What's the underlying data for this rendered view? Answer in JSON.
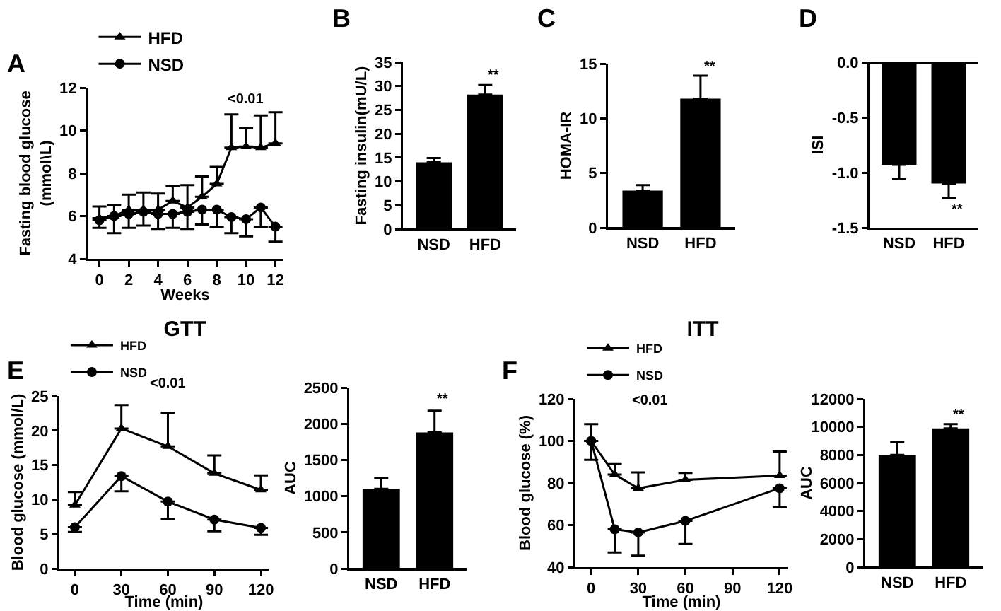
{
  "chart_data": [
    {
      "type": "line",
      "annotations": [
        "A",
        "<0.01"
      ],
      "xlabel": "Weeks",
      "ylabel": "Fasting blood glucose\n(mmol\\L)",
      "x": [
        0,
        1,
        2,
        3,
        4,
        5,
        6,
        7,
        8,
        9,
        10,
        11,
        12
      ],
      "xlim": [
        -0.8,
        12.5
      ],
      "xticks": [
        0,
        2,
        4,
        6,
        8,
        10,
        12
      ],
      "ylim": [
        4,
        12
      ],
      "yticks": [
        4,
        6,
        8,
        10,
        12
      ],
      "legend": "top left",
      "grid": false,
      "series": [
        {
          "name": "HFD",
          "color": "#000000",
          "marker": "triangle",
          "values": [
            5.9,
            6.0,
            6.3,
            6.3,
            6.3,
            6.7,
            6.4,
            6.9,
            7.5,
            9.2,
            9.25,
            9.2,
            9.4
          ],
          "errors": [
            [
              5.9,
              6.45
            ],
            [
              6.0,
              6.5
            ],
            [
              6.3,
              7.0
            ],
            [
              6.3,
              7.1
            ],
            [
              6.3,
              7.05
            ],
            [
              6.7,
              7.4
            ],
            [
              6.4,
              7.45
            ],
            [
              6.9,
              7.85
            ],
            [
              7.5,
              8.3
            ],
            [
              9.2,
              10.75
            ],
            [
              9.25,
              10.1
            ],
            [
              9.2,
              10.7
            ],
            [
              9.4,
              10.85
            ]
          ]
        },
        {
          "name": "NSD",
          "color": "#000000",
          "marker": "circle",
          "values": [
            5.8,
            6.0,
            6.1,
            6.2,
            6.1,
            6.1,
            6.2,
            6.3,
            6.3,
            5.95,
            5.85,
            6.4,
            5.5
          ],
          "errors": [
            [
              5.45,
              5.8
            ],
            [
              5.2,
              6.0
            ],
            [
              5.45,
              6.1
            ],
            [
              5.55,
              6.2
            ],
            [
              5.4,
              6.1
            ],
            [
              5.45,
              6.1
            ],
            [
              5.4,
              6.2
            ],
            [
              5.6,
              6.3
            ],
            [
              5.5,
              6.3
            ],
            [
              5.2,
              5.95
            ],
            [
              5.05,
              5.85
            ],
            [
              5.5,
              6.4
            ],
            [
              4.8,
              5.5
            ]
          ]
        }
      ]
    },
    {
      "type": "bar",
      "annotations": [
        "B",
        "**"
      ],
      "ylabel": "Fasting insulin(mU/L)",
      "categories": [
        "NSD",
        "HFD"
      ],
      "values": [
        14,
        28.2
      ],
      "errors": [
        [
          14,
          14.9
        ],
        [
          28.2,
          30.2
        ]
      ],
      "color": "#000000",
      "ylim": [
        0,
        35
      ],
      "yticks": [
        0,
        5,
        10,
        15,
        20,
        25,
        30,
        35
      ],
      "grid": false
    },
    {
      "type": "bar",
      "annotations": [
        "C",
        "**"
      ],
      "ylabel": "HOMA-IR",
      "categories": [
        "NSD",
        "HFD"
      ],
      "values": [
        3.4,
        11.8
      ],
      "errors": [
        [
          3.4,
          3.9
        ],
        [
          11.8,
          13.9
        ]
      ],
      "color": "#000000",
      "ylim": [
        0,
        15
      ],
      "yticks": [
        0,
        5,
        10,
        15
      ],
      "grid": false
    },
    {
      "type": "bar",
      "annotations": [
        "D",
        "**"
      ],
      "ylabel": "ISI",
      "categories": [
        "NSD",
        "HFD"
      ],
      "values": [
        -0.93,
        -1.1
      ],
      "errors": [
        [
          -1.06,
          -0.93
        ],
        [
          -1.23,
          -1.1
        ]
      ],
      "color": "#000000",
      "ylim": [
        -1.5,
        0
      ],
      "yticks": [
        {
          "value": -1.5,
          "label": "-1.5"
        },
        {
          "value": -1,
          "label": "-1.0"
        },
        {
          "value": -0.5,
          "label": "-0.5"
        },
        {
          "value": 0,
          "label": "0.0"
        }
      ],
      "grid": false
    },
    {
      "type": "line",
      "title": "GTT",
      "annotations": [
        "E",
        "<0.01"
      ],
      "xlabel": "Time (min)",
      "ylabel": "Blood glucose (mmol/L)",
      "x": [
        0,
        30,
        60,
        90,
        120
      ],
      "xlim": [
        -10,
        125
      ],
      "xticks": [
        0,
        30,
        60,
        90,
        120
      ],
      "ylim": [
        0,
        25
      ],
      "yticks": [
        0,
        5,
        10,
        15,
        20,
        25
      ],
      "legend": "top left",
      "grid": false,
      "series": [
        {
          "name": "HFD",
          "color": "#000000",
          "marker": "triangle",
          "values": [
            9.2,
            20.3,
            17.7,
            13.8,
            11.4
          ],
          "errors": [
            [
              9.2,
              11.1
            ],
            [
              20.3,
              23.7
            ],
            [
              17.7,
              22.6
            ],
            [
              13.8,
              16.4
            ],
            [
              11.4,
              13.5
            ]
          ]
        },
        {
          "name": "NSD",
          "color": "#000000",
          "marker": "circle",
          "values": [
            6.0,
            13.4,
            9.7,
            7.1,
            5.9
          ],
          "errors": [
            [
              5.3,
              6.0
            ],
            [
              11.2,
              13.4
            ],
            [
              7.2,
              9.7
            ],
            [
              5.4,
              7.1
            ],
            [
              4.9,
              5.9
            ]
          ]
        }
      ]
    },
    {
      "type": "bar",
      "annotations": [
        "**"
      ],
      "ylabel": "AUC",
      "categories": [
        "NSD",
        "HFD"
      ],
      "values": [
        1100,
        1880
      ],
      "errors": [
        [
          1100,
          1250
        ],
        [
          1880,
          2180
        ]
      ],
      "color": "#000000",
      "ylim": [
        0,
        2500
      ],
      "yticks": [
        0,
        500,
        1000,
        1500,
        2000,
        2500
      ],
      "grid": false
    },
    {
      "type": "line",
      "title": "ITT",
      "annotations": [
        "F",
        "<0.01"
      ],
      "xlabel": "Time (min)",
      "ylabel": "Blood glucose (%)",
      "x": [
        0,
        15,
        30,
        60,
        120
      ],
      "xlim": [
        -10,
        125
      ],
      "xticks": [
        0,
        30,
        60,
        90,
        120
      ],
      "ylim": [
        40,
        120
      ],
      "yticks": [
        40,
        60,
        80,
        100,
        120
      ],
      "legend": "top left",
      "grid": false,
      "series": [
        {
          "name": "HFD",
          "color": "#000000",
          "marker": "triangle",
          "values": [
            100,
            84,
            77.5,
            81.5,
            83.5
          ],
          "errors": [
            [
              100,
              108
            ],
            [
              84,
              89
            ],
            [
              77.5,
              85
            ],
            [
              81.5,
              84.8
            ],
            [
              83.5,
              95
            ]
          ]
        },
        {
          "name": "NSD",
          "color": "#000000",
          "marker": "circle",
          "values": [
            100,
            58,
            56.5,
            62,
            77.5
          ],
          "errors": [
            [
              91,
              100
            ],
            [
              47,
              58
            ],
            [
              45.5,
              56.5
            ],
            [
              51,
              62
            ],
            [
              68.5,
              77.5
            ]
          ]
        }
      ]
    },
    {
      "type": "bar",
      "annotations": [
        "**"
      ],
      "ylabel": "AUC",
      "categories": [
        "NSD",
        "HFD"
      ],
      "values": [
        8000,
        9900
      ],
      "errors": [
        [
          8000,
          8900
        ],
        [
          9900,
          10200
        ]
      ],
      "color": "#000000",
      "ylim": [
        0,
        12000
      ],
      "yticks": [
        0,
        2000,
        4000,
        6000,
        8000,
        10000,
        12000
      ],
      "grid": false
    }
  ]
}
